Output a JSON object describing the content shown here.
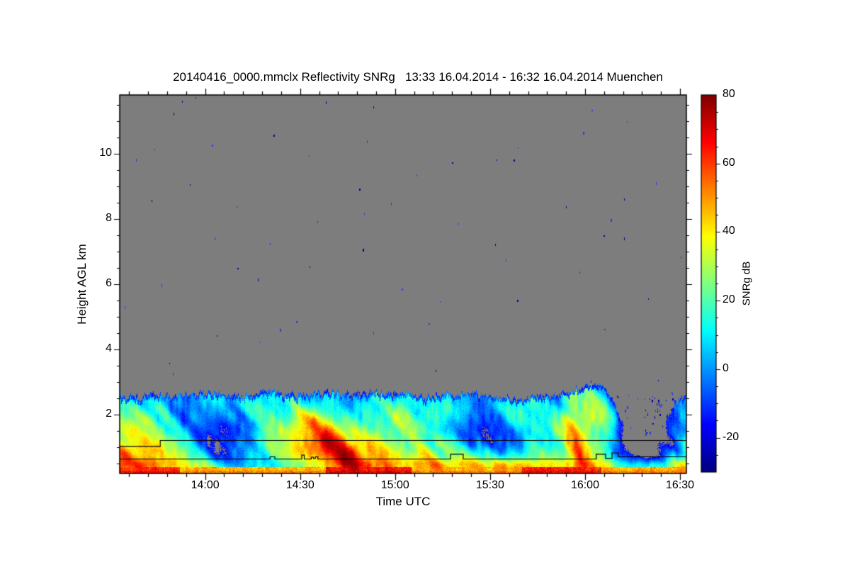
{
  "page": {
    "background": "#ffffff"
  },
  "chart_data": {
    "type": "heatmap",
    "title": "20140416_0000.mmclx Reflectivity SNRg   13:33 16.04.2014 - 16:32 16.04.2014 Muenchen",
    "source_file": "20140416_0000.mmclx",
    "quantity": "Reflectivity SNRg",
    "time_start": "13:33 16.04.2014",
    "time_end": "16:32 16.04.2014",
    "station": "Muenchen",
    "x_axis": {
      "label": "Time UTC",
      "start_min": 0,
      "end_min": 179,
      "tick_labels": [
        "14:00",
        "14:30",
        "15:00",
        "15:30",
        "16:00",
        "16:30"
      ],
      "tick_minutes": [
        27,
        57,
        87,
        117,
        147,
        177
      ],
      "minor_step_min": 6
    },
    "y_axis": {
      "label": "Height AGL km",
      "min_km": 0.2,
      "max_km": 11.8,
      "tick_labels": [
        "2",
        "4",
        "6",
        "8",
        "10"
      ],
      "tick_values": [
        2,
        4,
        6,
        8,
        10
      ],
      "minor_step_km": 0.5
    },
    "colorbar": {
      "label": "SNRg dB",
      "min": -30,
      "max": 80,
      "tick_labels": [
        "80",
        "60",
        "40",
        "20",
        "0",
        "-20"
      ],
      "tick_values": [
        80,
        60,
        40,
        20,
        0,
        -20
      ],
      "minor_step": 5,
      "colormap": "jet"
    },
    "colors": {
      "no_echo_gray": "#7d7d7d",
      "frame": "#000000",
      "text": "#000000",
      "background": "#ffffff",
      "speckle_dark_blue": "#0000a0",
      "speckle_blue": "#2a3ce6"
    },
    "echo_top_km": [
      [
        0,
        2.6
      ],
      [
        6,
        2.5
      ],
      [
        12,
        2.62
      ],
      [
        18,
        2.55
      ],
      [
        24,
        2.6
      ],
      [
        30,
        2.68
      ],
      [
        36,
        2.55
      ],
      [
        42,
        2.6
      ],
      [
        48,
        2.72
      ],
      [
        54,
        2.6
      ],
      [
        60,
        2.65
      ],
      [
        66,
        2.7
      ],
      [
        72,
        2.6
      ],
      [
        78,
        2.65
      ],
      [
        84,
        2.7
      ],
      [
        90,
        2.6
      ],
      [
        96,
        2.55
      ],
      [
        102,
        2.6
      ],
      [
        108,
        2.65
      ],
      [
        114,
        2.6
      ],
      [
        120,
        2.5
      ],
      [
        126,
        2.45
      ],
      [
        132,
        2.55
      ],
      [
        138,
        2.6
      ],
      [
        143,
        2.7
      ],
      [
        148,
        2.95
      ],
      [
        152,
        2.85
      ],
      [
        155,
        2.6
      ],
      [
        158,
        1.9
      ],
      [
        161,
        1.5
      ],
      [
        165,
        1.35
      ],
      [
        168,
        1.3
      ],
      [
        171,
        1.5
      ],
      [
        174,
        2.1
      ],
      [
        176,
        2.4
      ],
      [
        178,
        2.6
      ],
      [
        179,
        2.65
      ]
    ],
    "overlay_lines": [
      {
        "name": "upper-boundary-line",
        "points_min_km": [
          [
            0,
            1.03
          ],
          [
            12.8,
            1.03
          ],
          [
            12.8,
            1.21
          ],
          [
            179,
            1.21
          ]
        ]
      },
      {
        "name": "lower-boundary-line",
        "points_min_km": [
          [
            0,
            0.64
          ],
          [
            47.5,
            0.64
          ],
          [
            47.5,
            0.71
          ],
          [
            49,
            0.71
          ],
          [
            49,
            0.64
          ],
          [
            57.5,
            0.64
          ],
          [
            57.5,
            0.76
          ],
          [
            58.3,
            0.76
          ],
          [
            58.3,
            0.64
          ],
          [
            60.5,
            0.64
          ],
          [
            60.5,
            0.7
          ],
          [
            61.2,
            0.7
          ],
          [
            61.2,
            0.66
          ],
          [
            61.8,
            0.66
          ],
          [
            61.8,
            0.71
          ],
          [
            62.6,
            0.71
          ],
          [
            62.6,
            0.64
          ],
          [
            104.5,
            0.64
          ],
          [
            104.5,
            0.79
          ],
          [
            108.5,
            0.79
          ],
          [
            108.5,
            0.64
          ],
          [
            150.5,
            0.64
          ],
          [
            150.5,
            0.79
          ],
          [
            153.5,
            0.79
          ],
          [
            153.5,
            0.66
          ],
          [
            155.5,
            0.66
          ],
          [
            155.5,
            0.83
          ],
          [
            157.5,
            0.83
          ],
          [
            157.5,
            0.71
          ],
          [
            179,
            0.71
          ]
        ]
      }
    ],
    "field_model": {
      "noise_seed": 42,
      "base_db_at_surface": 37,
      "lapse_db": 21,
      "weak_patches_t_h_st_sh_amp": [
        [
          20,
          2.1,
          4,
          0.35,
          14
        ],
        [
          33,
          1.45,
          9,
          0.5,
          42
        ],
        [
          36,
          0.8,
          8,
          0.3,
          22
        ],
        [
          50,
          0.45,
          16,
          0.17,
          26
        ],
        [
          57,
          2.3,
          3,
          0.3,
          12
        ],
        [
          112,
          1.5,
          8,
          0.5,
          40
        ],
        [
          124,
          1.05,
          6,
          0.4,
          30
        ],
        [
          135,
          2.0,
          4,
          0.4,
          16
        ],
        [
          160,
          1.05,
          6,
          0.5,
          30
        ],
        [
          163,
          2.0,
          8,
          0.6,
          20
        ],
        [
          168,
          0.95,
          6,
          0.5,
          32
        ],
        [
          176,
          1.4,
          3,
          0.6,
          18
        ]
      ],
      "warm_plumes_t_h_st_sh_amp_slant": [
        [
          2,
          1.6,
          3,
          0.7,
          14,
          4
        ],
        [
          6,
          0.6,
          7,
          0.4,
          16,
          4
        ],
        [
          62,
          1.6,
          4,
          0.7,
          20,
          8.8
        ],
        [
          68,
          0.9,
          7,
          0.6,
          24,
          8.8
        ],
        [
          74,
          0.5,
          6,
          0.4,
          16,
          8.8
        ],
        [
          95,
          0.5,
          4,
          0.35,
          14,
          6
        ],
        [
          120,
          0.35,
          5,
          0.25,
          10,
          6
        ],
        [
          144,
          1.3,
          1.7,
          1.1,
          22,
          2
        ],
        [
          150,
          1.9,
          4,
          1.0,
          11,
          2
        ],
        [
          172.5,
          2.35,
          1.5,
          0.3,
          13,
          0
        ]
      ],
      "yellow_layer": {
        "center_km": 0.47,
        "sigma_km": 0.16,
        "amp_db": 9
      },
      "bottom_band": {
        "top_km": 0.4,
        "base_db": 47,
        "strong_segments_tmin_tmax_boost_db": [
          [
            0,
            19,
            14
          ],
          [
            65,
            92,
            18
          ],
          [
            127,
            152,
            16
          ]
        ]
      },
      "clear_air_speckles": {
        "count": 60,
        "intrusion_count": 45
      }
    }
  }
}
